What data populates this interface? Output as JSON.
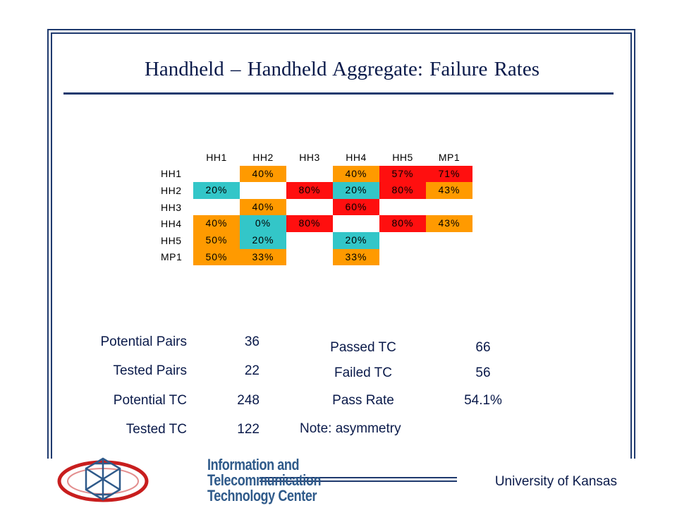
{
  "title": "Handheld – Handheld Aggregate:   Failure Rates",
  "matrix": {
    "columns": [
      "HH1",
      "HH2",
      "HH3",
      "HH4",
      "HH5",
      "MP1"
    ],
    "rows": [
      {
        "label": "HH1",
        "cells": [
          {
            "text": "",
            "color": ""
          },
          {
            "text": "40%",
            "color": "orange"
          },
          {
            "text": "",
            "color": ""
          },
          {
            "text": "40%",
            "color": "orange"
          },
          {
            "text": "57%",
            "color": "red"
          },
          {
            "text": "71%",
            "color": "red"
          }
        ]
      },
      {
        "label": "HH2",
        "cells": [
          {
            "text": "20%",
            "color": "cyan"
          },
          {
            "text": "",
            "color": ""
          },
          {
            "text": "80%",
            "color": "red"
          },
          {
            "text": "20%",
            "color": "cyan"
          },
          {
            "text": "80%",
            "color": "red"
          },
          {
            "text": "43%",
            "color": "orange"
          }
        ]
      },
      {
        "label": "HH3",
        "cells": [
          {
            "text": "",
            "color": ""
          },
          {
            "text": "40%",
            "color": "orange"
          },
          {
            "text": "",
            "color": ""
          },
          {
            "text": "60%",
            "color": "red"
          },
          {
            "text": "",
            "color": ""
          },
          {
            "text": "",
            "color": ""
          }
        ]
      },
      {
        "label": "HH4",
        "cells": [
          {
            "text": "40%",
            "color": "orange"
          },
          {
            "text": "0%",
            "color": "cyan"
          },
          {
            "text": "80%",
            "color": "red"
          },
          {
            "text": "",
            "color": ""
          },
          {
            "text": "80%",
            "color": "red"
          },
          {
            "text": "43%",
            "color": "orange"
          }
        ]
      },
      {
        "label": "HH5",
        "cells": [
          {
            "text": "50%",
            "color": "orange"
          },
          {
            "text": "20%",
            "color": "cyan"
          },
          {
            "text": "",
            "color": ""
          },
          {
            "text": "20%",
            "color": "cyan"
          },
          {
            "text": "",
            "color": ""
          },
          {
            "text": "",
            "color": ""
          }
        ]
      },
      {
        "label": "MP1",
        "cells": [
          {
            "text": "50%",
            "color": "orange"
          },
          {
            "text": "33%",
            "color": "orange"
          },
          {
            "text": "",
            "color": ""
          },
          {
            "text": "33%",
            "color": "orange"
          },
          {
            "text": "",
            "color": ""
          },
          {
            "text": "",
            "color": ""
          }
        ]
      }
    ],
    "colors": {
      "orange": "#ff9a00",
      "red": "#ff0f0f",
      "cyan": "#33c6c8"
    }
  },
  "stats_left": [
    {
      "label": "Potential Pairs",
      "value": "36"
    },
    {
      "label": "Tested Pairs",
      "value": "22"
    },
    {
      "label": "Potential TC",
      "value": "248"
    },
    {
      "label": "Tested TC",
      "value": "122"
    }
  ],
  "stats_right": [
    {
      "label": "Passed TC",
      "value": "66"
    },
    {
      "label": "Failed TC",
      "value": "56"
    },
    {
      "label": "Pass Rate",
      "value": "54.1%"
    }
  ],
  "note": "Note:  asymmetry",
  "logo": {
    "line1": "Information and",
    "line2": "Telecommunication",
    "line3": "Technology Center"
  },
  "footer": "University of Kansas"
}
